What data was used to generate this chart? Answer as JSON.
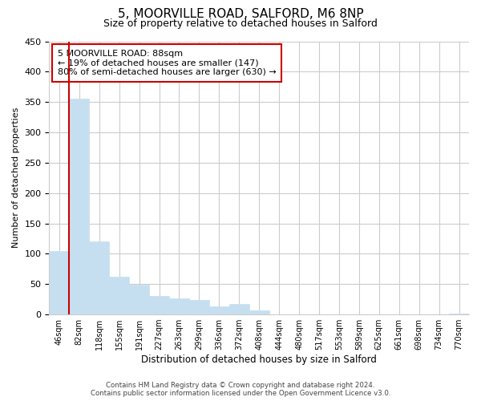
{
  "title": "5, MOORVILLE ROAD, SALFORD, M6 8NP",
  "subtitle": "Size of property relative to detached houses in Salford",
  "xlabel": "Distribution of detached houses by size in Salford",
  "ylabel": "Number of detached properties",
  "bar_labels": [
    "46sqm",
    "82sqm",
    "118sqm",
    "155sqm",
    "191sqm",
    "227sqm",
    "263sqm",
    "299sqm",
    "336sqm",
    "372sqm",
    "408sqm",
    "444sqm",
    "480sqm",
    "517sqm",
    "553sqm",
    "589sqm",
    "625sqm",
    "661sqm",
    "698sqm",
    "734sqm",
    "770sqm"
  ],
  "bar_values": [
    105,
    355,
    120,
    62,
    49,
    30,
    26,
    24,
    13,
    17,
    7,
    0,
    0,
    0,
    0,
    0,
    0,
    0,
    0,
    0,
    2
  ],
  "bar_color": "#c6dff0",
  "bar_edge_color": "#c6dff0",
  "vline_x": 0.5,
  "vline_color": "#cc0000",
  "annotation_text": "5 MOORVILLE ROAD: 88sqm\n← 19% of detached houses are smaller (147)\n80% of semi-detached houses are larger (630) →",
  "annotation_box_edgecolor": "#cc0000",
  "ylim": [
    0,
    450
  ],
  "yticks": [
    0,
    50,
    100,
    150,
    200,
    250,
    300,
    350,
    400,
    450
  ],
  "grid_color": "#cccccc",
  "bg_color": "#ffffff",
  "footer_line1": "Contains HM Land Registry data © Crown copyright and database right 2024.",
  "footer_line2": "Contains public sector information licensed under the Open Government Licence v3.0."
}
